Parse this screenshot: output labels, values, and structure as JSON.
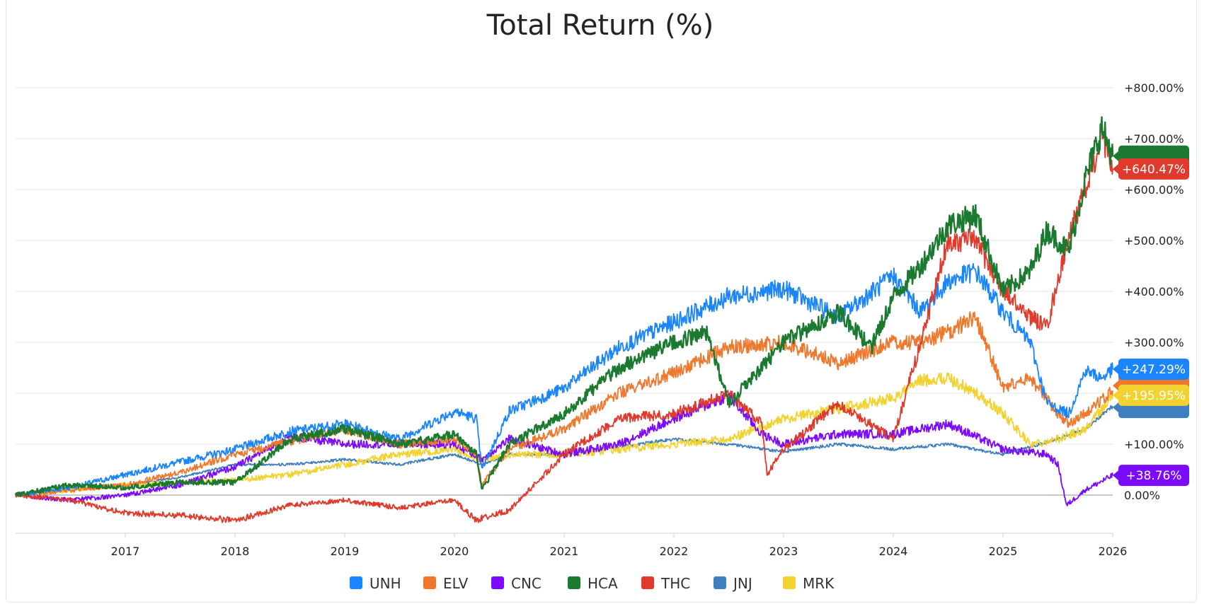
{
  "chart_data": {
    "type": "line",
    "title": "Total Return (%)",
    "xlabel": "",
    "ylabel": "",
    "x_ticks": [
      "2017",
      "2018",
      "2019",
      "2020",
      "2021",
      "2022",
      "2023",
      "2024",
      "2025",
      "2026"
    ],
    "x_range": [
      2016.0,
      2026.0
    ],
    "ylim": [
      -75,
      800
    ],
    "y_ticks": [
      0,
      100,
      200,
      300,
      400,
      500,
      600,
      700,
      800
    ],
    "y_tick_labels": [
      "0.00%",
      "+100.00%",
      "+200.00%",
      "+300.00%",
      "+400.00%",
      "+500.00%",
      "+600.00%",
      "+700.00%",
      "+800.00%"
    ],
    "grid": true,
    "legend_position": "bottom",
    "series": [
      {
        "name": "UNH",
        "color": "#1a85ff",
        "end_label": "+247.29%",
        "x": [
          2016.0,
          2016.5,
          2017.0,
          2017.5,
          2018.0,
          2018.5,
          2019.0,
          2019.5,
          2020.0,
          2020.2,
          2020.25,
          2020.5,
          2021.0,
          2021.5,
          2022.0,
          2022.5,
          2023.0,
          2023.5,
          2024.0,
          2024.25,
          2024.5,
          2024.75,
          2025.0,
          2025.25,
          2025.4,
          2025.6,
          2025.75,
          2025.9,
          2026.0
        ],
        "y": [
          0,
          15,
          40,
          65,
          90,
          125,
          140,
          110,
          165,
          150,
          50,
          165,
          210,
          290,
          340,
          390,
          405,
          350,
          430,
          360,
          420,
          440,
          360,
          300,
          180,
          160,
          245,
          230,
          247.29
        ]
      },
      {
        "name": "ELV",
        "color": "#f0782d",
        "end_label": "",
        "x": [
          2016.0,
          2016.5,
          2017.0,
          2017.5,
          2018.0,
          2018.5,
          2019.0,
          2019.5,
          2020.0,
          2020.2,
          2020.25,
          2020.5,
          2021.0,
          2021.5,
          2022.0,
          2022.5,
          2023.0,
          2023.5,
          2024.0,
          2024.25,
          2024.5,
          2024.75,
          2025.0,
          2025.25,
          2025.5,
          2025.6,
          2025.75,
          2026.0
        ],
        "y": [
          0,
          10,
          20,
          45,
          80,
          105,
          130,
          100,
          110,
          80,
          20,
          90,
          130,
          200,
          240,
          290,
          300,
          260,
          300,
          300,
          320,
          350,
          210,
          230,
          160,
          140,
          160,
          205
        ]
      },
      {
        "name": "CNC",
        "color": "#7b0aff",
        "end_label": "+38.76%",
        "x": [
          2016.0,
          2016.5,
          2017.0,
          2017.5,
          2018.0,
          2018.5,
          2019.0,
          2019.5,
          2020.0,
          2020.25,
          2020.5,
          2021.0,
          2021.5,
          2022.0,
          2022.5,
          2022.8,
          2023.0,
          2023.5,
          2024.0,
          2024.5,
          2025.0,
          2025.4,
          2025.5,
          2025.58,
          2025.75,
          2026.0
        ],
        "y": [
          0,
          -10,
          0,
          20,
          55,
          115,
          100,
          100,
          100,
          70,
          110,
          80,
          100,
          150,
          195,
          120,
          100,
          120,
          120,
          140,
          90,
          80,
          60,
          -20,
          10,
          38.76
        ]
      },
      {
        "name": "HCA",
        "color": "#1b7a30",
        "end_label": "",
        "x": [
          2016.0,
          2016.5,
          2017.0,
          2017.5,
          2018.0,
          2018.5,
          2019.0,
          2019.5,
          2020.0,
          2020.2,
          2020.25,
          2020.5,
          2021.0,
          2021.5,
          2022.0,
          2022.3,
          2022.5,
          2022.8,
          2023.0,
          2023.5,
          2023.8,
          2024.0,
          2024.25,
          2024.5,
          2024.75,
          2025.0,
          2025.25,
          2025.4,
          2025.6,
          2025.75,
          2025.9,
          2026.0
        ],
        "y": [
          0,
          20,
          15,
          25,
          25,
          110,
          130,
          100,
          120,
          80,
          10,
          100,
          160,
          250,
          300,
          320,
          180,
          250,
          300,
          360,
          290,
          390,
          450,
          530,
          550,
          400,
          440,
          520,
          480,
          620,
          720,
          665.7
        ]
      },
      {
        "name": "THC",
        "color": "#e03a2c",
        "end_label": "+640.47%",
        "x": [
          2016.0,
          2016.5,
          2017.0,
          2017.5,
          2018.0,
          2018.5,
          2019.0,
          2019.5,
          2020.0,
          2020.2,
          2020.25,
          2020.5,
          2021.0,
          2021.5,
          2022.0,
          2022.5,
          2022.8,
          2022.85,
          2023.0,
          2023.5,
          2024.0,
          2024.25,
          2024.5,
          2024.75,
          2025.0,
          2025.25,
          2025.4,
          2025.6,
          2025.75,
          2025.9,
          2026.0
        ],
        "y": [
          0,
          -10,
          -35,
          -40,
          -50,
          -20,
          -10,
          -25,
          -10,
          -50,
          -45,
          -30,
          80,
          150,
          160,
          200,
          140,
          40,
          90,
          180,
          110,
          300,
          500,
          500,
          400,
          350,
          330,
          510,
          600,
          700,
          640.47
        ]
      },
      {
        "name": "JNJ",
        "color": "#3f7fbf",
        "end_label": "",
        "x": [
          2016.0,
          2016.5,
          2017.0,
          2017.5,
          2018.0,
          2018.5,
          2019.0,
          2019.5,
          2020.0,
          2020.25,
          2020.5,
          2021.0,
          2021.5,
          2022.0,
          2022.5,
          2023.0,
          2023.5,
          2024.0,
          2024.5,
          2025.0,
          2025.5,
          2025.75,
          2026.0
        ],
        "y": [
          0,
          10,
          20,
          35,
          60,
          60,
          70,
          60,
          80,
          60,
          80,
          80,
          95,
          110,
          100,
          85,
          100,
          90,
          100,
          80,
          110,
          130,
          175
        ]
      },
      {
        "name": "MRK",
        "color": "#f2d22e",
        "end_label": "+195.95%",
        "x": [
          2016.0,
          2016.5,
          2017.0,
          2017.5,
          2018.0,
          2018.5,
          2019.0,
          2019.5,
          2020.0,
          2020.25,
          2020.5,
          2021.0,
          2021.5,
          2022.0,
          2022.5,
          2023.0,
          2023.5,
          2024.0,
          2024.25,
          2024.5,
          2024.75,
          2025.0,
          2025.25,
          2025.5,
          2025.75,
          2026.0
        ],
        "y": [
          0,
          10,
          20,
          25,
          30,
          40,
          60,
          80,
          90,
          70,
          80,
          80,
          90,
          100,
          110,
          150,
          170,
          190,
          225,
          230,
          200,
          160,
          100,
          110,
          130,
          195.95
        ]
      }
    ],
    "end_labels_visible": [
      "+247.29%",
      "+195.95%",
      "+640.47%",
      "+38.76%"
    ]
  }
}
